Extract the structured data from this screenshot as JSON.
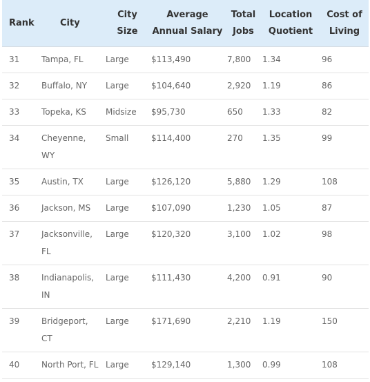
{
  "table": {
    "headers": {
      "rank": "Rank",
      "city": "City",
      "city_size_1": "City",
      "city_size_2": "Size",
      "salary_1": "Average",
      "salary_2": "Annual Salary",
      "jobs_1": "Total",
      "jobs_2": "Jobs",
      "lq_1": "Location",
      "lq_2": "Quotient",
      "col_1": "Cost of",
      "col_2": "Living"
    },
    "rows": [
      {
        "rank": "31",
        "city_1": "Tampa, FL",
        "city_2": "",
        "size": "Large",
        "salary": "$113,490",
        "jobs": "7,800",
        "lq": "1.34",
        "col": "96"
      },
      {
        "rank": "32",
        "city_1": "Buffalo, NY",
        "city_2": "",
        "size": "Large",
        "salary": "$104,640",
        "jobs": "2,920",
        "lq": "1.19",
        "col": "86"
      },
      {
        "rank": "33",
        "city_1": "Topeka, KS",
        "city_2": "",
        "size": "Midsize",
        "salary": "$95,730",
        "jobs": "650",
        "lq": "1.33",
        "col": "82"
      },
      {
        "rank": "34",
        "city_1": "Cheyenne,",
        "city_2": "WY",
        "size": "Small",
        "salary": "$114,400",
        "jobs": "270",
        "lq": "1.35",
        "col": "99"
      },
      {
        "rank": "35",
        "city_1": "Austin, TX",
        "city_2": "",
        "size": "Large",
        "salary": "$126,120",
        "jobs": "5,880",
        "lq": "1.29",
        "col": "108"
      },
      {
        "rank": "36",
        "city_1": "Jackson, MS",
        "city_2": "",
        "size": "Large",
        "salary": "$107,090",
        "jobs": "1,230",
        "lq": "1.05",
        "col": "87"
      },
      {
        "rank": "37",
        "city_1": "Jacksonville,",
        "city_2": "FL",
        "size": "Large",
        "salary": "$120,320",
        "jobs": "3,100",
        "lq": "1.02",
        "col": "98"
      },
      {
        "rank": "38",
        "city_1": "Indianapolis,",
        "city_2": "IN",
        "size": "Large",
        "salary": "$111,430",
        "jobs": "4,200",
        "lq": "0.91",
        "col": "90"
      },
      {
        "rank": "39",
        "city_1": "Bridgeport,",
        "city_2": "CT",
        "size": "Large",
        "salary": "$171,690",
        "jobs": "2,210",
        "lq": "1.19",
        "col": "150"
      },
      {
        "rank": "40",
        "city_1": "North Port, FL",
        "city_2": "",
        "size": "Large",
        "salary": "$129,140",
        "jobs": "1,300",
        "lq": "0.99",
        "col": "108"
      }
    ]
  },
  "colors": {
    "header_bg": "#dcecf9",
    "header_text": "#333333",
    "cell_text": "#666666",
    "row_border": "#e2e2e2"
  }
}
